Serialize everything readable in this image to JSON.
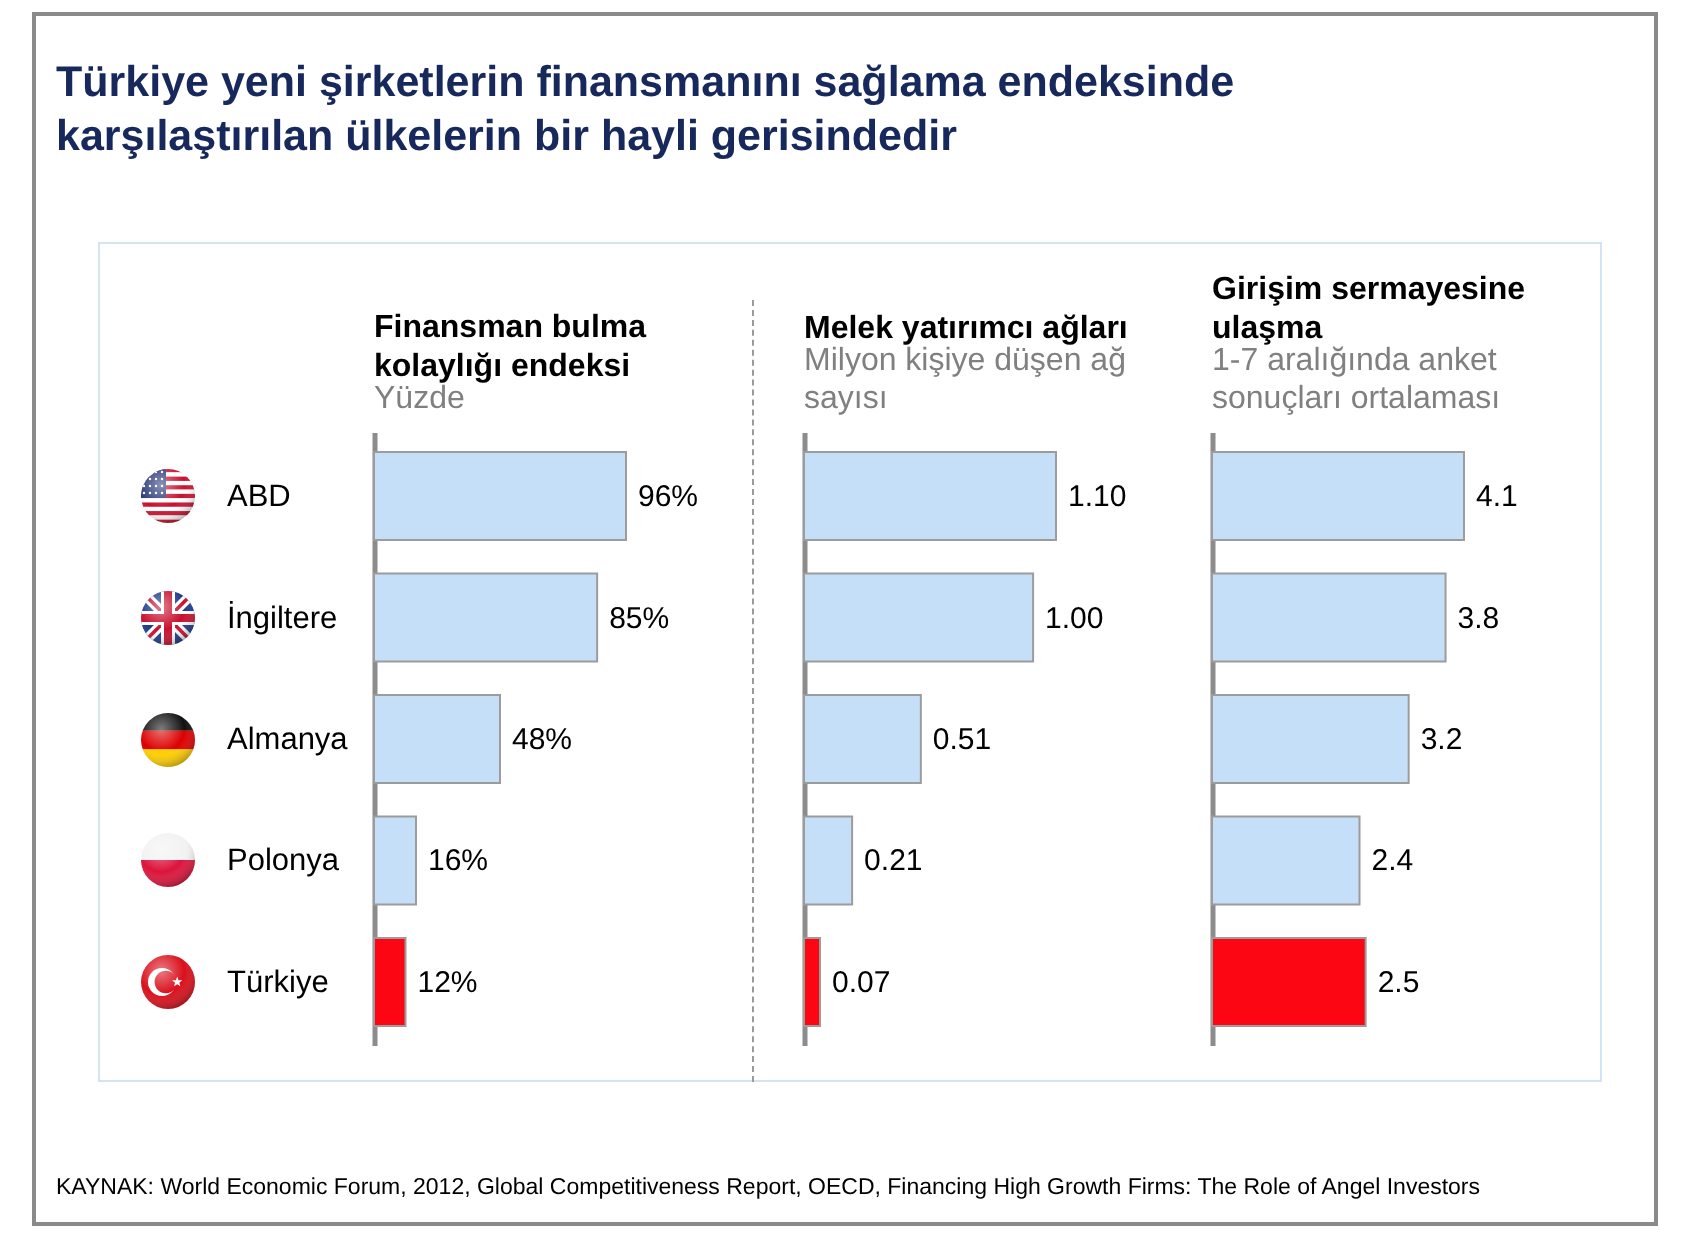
{
  "chart_data": [
    {
      "type": "other",
      "title": "Türkiye yeni şirketlerin finansmanını sağlama endeksinde karşılaştırılan ülkelerin bir hayli gerisindedir"
    },
    {
      "type": "bar",
      "orientation": "horizontal",
      "title": "Finansman bulma kolaylığı endeksi",
      "subtitle": "Yüzde",
      "categories": [
        "ABD",
        "İngiltere",
        "Almanya",
        "Polonya",
        "Türkiye"
      ],
      "values": [
        96,
        85,
        48,
        16,
        12
      ],
      "value_labels": [
        "96%",
        "85%",
        "48%",
        "16%",
        "12%"
      ],
      "colors": [
        "#c6dff8",
        "#c6dff8",
        "#c6dff8",
        "#c6dff8",
        "#fb0612"
      ],
      "tick_labels": "y"
    },
    {
      "type": "bar",
      "orientation": "horizontal",
      "title": "Melek yatırımcı ağları",
      "subtitle": "Milyon kişiye düşen ağ sayısı",
      "categories": [
        null,
        null,
        null,
        null,
        null
      ],
      "values": [
        1.1,
        1.0,
        0.51,
        0.21,
        0.07
      ],
      "value_labels": [
        "1.10",
        "1.00",
        "0.51",
        "0.21",
        "0.07"
      ],
      "colors": [
        "#c6dff8",
        "#c6dff8",
        "#c6dff8",
        "#c6dff8",
        "#fb0612"
      ],
      "tick_labels": false
    },
    {
      "type": "bar",
      "orientation": "horizontal",
      "title": "Girişim sermayesine ulaşma",
      "subtitle": "1-7 aralığında anket sonuçları ortalaması",
      "categories": [
        null,
        null,
        null,
        null,
        null
      ],
      "values": [
        4.1,
        3.8,
        3.2,
        2.4,
        2.5
      ],
      "data_labels": true,
      "colors": [
        "#c6dff8",
        "#c6dff8",
        "#c6dff8",
        "#c6dff8",
        "#fb0612"
      ],
      "tick_labels": false
    },
    {
      "type": "other",
      "annotations": [
        "KAYNAK: World Economic Forum, 2012, Global Competitiveness Report, OECD, Financing High Growth Firms: The Role of Angel Investors"
      ]
    }
  ]
}
